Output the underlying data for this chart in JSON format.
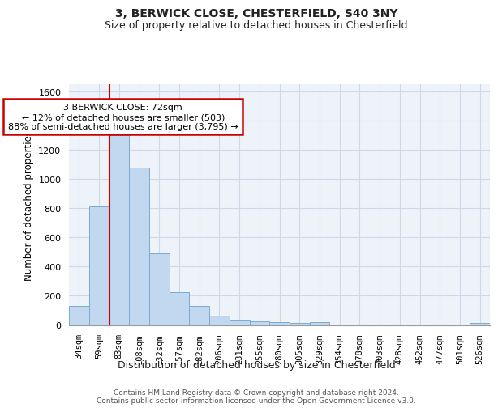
{
  "title_line1": "3, BERWICK CLOSE, CHESTERFIELD, S40 3NY",
  "title_line2": "Size of property relative to detached houses in Chesterfield",
  "xlabel": "Distribution of detached houses by size in Chesterfield",
  "ylabel": "Number of detached properties",
  "bar_color": "#c2d8f0",
  "bar_edge_color": "#7aabce",
  "categories": [
    "34sqm",
    "59sqm",
    "83sqm",
    "108sqm",
    "132sqm",
    "157sqm",
    "182sqm",
    "206sqm",
    "231sqm",
    "255sqm",
    "280sqm",
    "305sqm",
    "329sqm",
    "354sqm",
    "378sqm",
    "403sqm",
    "428sqm",
    "452sqm",
    "477sqm",
    "501sqm",
    "526sqm"
  ],
  "values": [
    130,
    810,
    1300,
    1080,
    490,
    225,
    130,
    65,
    38,
    25,
    18,
    13,
    18,
    5,
    5,
    5,
    5,
    5,
    5,
    5,
    12
  ],
  "ylim": [
    0,
    1650
  ],
  "yticks": [
    0,
    200,
    400,
    600,
    800,
    1000,
    1200,
    1400,
    1600
  ],
  "vline_x": 1.5,
  "annotation_text": "3 BERWICK CLOSE: 72sqm\n← 12% of detached houses are smaller (503)\n88% of semi-detached houses are larger (3,795) →",
  "annotation_box_facecolor": "#ffffff",
  "annotation_box_edgecolor": "#cc0000",
  "vline_color": "#cc0000",
  "footer_line1": "Contains HM Land Registry data © Crown copyright and database right 2024.",
  "footer_line2": "Contains public sector information licensed under the Open Government Licence v3.0.",
  "grid_color": "#d0d8e8",
  "plot_bg_color": "#eef2f9"
}
